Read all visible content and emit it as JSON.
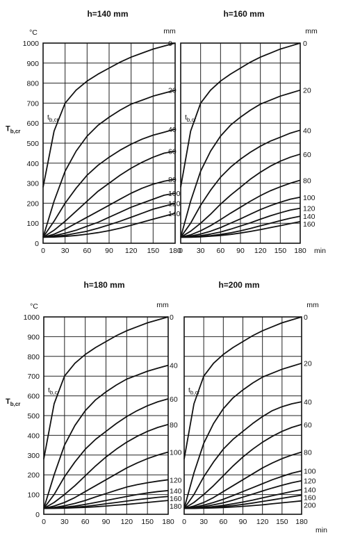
{
  "figure": {
    "y_axis_label": "T",
    "y_axis_label_sub": "b,cr",
    "y_unit": "°C",
    "depth_unit": "mm",
    "x_unit": "min",
    "inline_label": "t",
    "inline_label_sub": "b,cr",
    "x_ticks": [
      "0",
      "30",
      "60",
      "90",
      "120",
      "150",
      "180"
    ],
    "y_ticks": [
      "0",
      "100",
      "200",
      "300",
      "400",
      "500",
      "600",
      "700",
      "800",
      "900",
      "1000"
    ]
  },
  "chart_data": [
    {
      "type": "line",
      "title": "h=140 mm",
      "xlim": [
        0,
        180
      ],
      "ylim": [
        0,
        1000
      ],
      "grid": true,
      "x": [
        0,
        15,
        30,
        45,
        60,
        75,
        90,
        105,
        120,
        135,
        150,
        165,
        180
      ],
      "series": [
        {
          "name": "0",
          "values": [
            280,
            560,
            700,
            765,
            810,
            845,
            875,
            905,
            930,
            950,
            970,
            985,
            1000
          ]
        },
        {
          "name": "20",
          "values": [
            30,
            210,
            360,
            460,
            535,
            590,
            630,
            665,
            695,
            715,
            735,
            750,
            765
          ]
        },
        {
          "name": "40",
          "values": [
            30,
            110,
            200,
            275,
            340,
            390,
            430,
            465,
            495,
            520,
            540,
            555,
            570
          ]
        },
        {
          "name": "60",
          "values": [
            30,
            65,
            110,
            160,
            210,
            260,
            300,
            340,
            375,
            405,
            430,
            450,
            460
          ]
        },
        {
          "name": "80",
          "values": [
            30,
            45,
            70,
            100,
            130,
            160,
            190,
            220,
            250,
            275,
            295,
            310,
            320
          ]
        },
        {
          "name": "100",
          "values": [
            30,
            38,
            50,
            65,
            85,
            105,
            130,
            155,
            180,
            200,
            220,
            240,
            250
          ]
        },
        {
          "name": "120",
          "values": [
            30,
            34,
            40,
            50,
            60,
            75,
            92,
            110,
            130,
            150,
            170,
            185,
            200
          ]
        },
        {
          "name": "140",
          "values": [
            30,
            31,
            34,
            39,
            45,
            53,
            63,
            75,
            90,
            105,
            120,
            135,
            150
          ]
        }
      ]
    },
    {
      "type": "line",
      "title": "h=160 mm",
      "xlim": [
        0,
        180
      ],
      "ylim": [
        0,
        1000
      ],
      "grid": true,
      "x": [
        0,
        15,
        30,
        45,
        60,
        75,
        90,
        105,
        120,
        135,
        150,
        165,
        180
      ],
      "series": [
        {
          "name": "0",
          "values": [
            280,
            560,
            700,
            765,
            810,
            845,
            875,
            905,
            930,
            950,
            970,
            985,
            1000
          ]
        },
        {
          "name": "20",
          "values": [
            30,
            210,
            360,
            460,
            535,
            590,
            630,
            665,
            695,
            715,
            735,
            750,
            765
          ]
        },
        {
          "name": "40",
          "values": [
            30,
            100,
            190,
            265,
            330,
            380,
            420,
            455,
            485,
            510,
            530,
            550,
            565
          ]
        },
        {
          "name": "60",
          "values": [
            30,
            60,
            100,
            145,
            195,
            240,
            280,
            320,
            355,
            385,
            410,
            430,
            445
          ]
        },
        {
          "name": "80",
          "values": [
            30,
            42,
            62,
            88,
            118,
            150,
            180,
            210,
            238,
            262,
            282,
            300,
            315
          ]
        },
        {
          "name": "100",
          "values": [
            30,
            36,
            46,
            60,
            78,
            100,
            122,
            145,
            168,
            188,
            205,
            220,
            230
          ]
        },
        {
          "name": "120",
          "values": [
            30,
            33,
            38,
            46,
            56,
            70,
            86,
            102,
            120,
            137,
            152,
            166,
            175
          ]
        },
        {
          "name": "140",
          "values": [
            30,
            31,
            34,
            38,
            44,
            52,
            62,
            74,
            87,
            100,
            113,
            125,
            135
          ]
        },
        {
          "name": "160",
          "values": [
            30,
            30,
            32,
            35,
            39,
            44,
            51,
            59,
            68,
            78,
            88,
            98,
            108
          ]
        }
      ]
    },
    {
      "type": "line",
      "title": "h=180 mm",
      "xlim": [
        0,
        180
      ],
      "ylim": [
        0,
        1000
      ],
      "grid": true,
      "x": [
        0,
        15,
        30,
        45,
        60,
        75,
        90,
        105,
        120,
        135,
        150,
        165,
        180
      ],
      "series": [
        {
          "name": "0",
          "values": [
            280,
            560,
            700,
            765,
            810,
            845,
            875,
            905,
            930,
            950,
            970,
            985,
            1000
          ]
        },
        {
          "name": "40",
          "values": [
            30,
            200,
            350,
            450,
            525,
            580,
            620,
            655,
            685,
            705,
            725,
            740,
            755
          ]
        },
        {
          "name": "60",
          "values": [
            30,
            100,
            190,
            265,
            330,
            380,
            420,
            460,
            495,
            525,
            550,
            570,
            585
          ]
        },
        {
          "name": "80",
          "values": [
            30,
            60,
            100,
            145,
            195,
            245,
            290,
            330,
            365,
            395,
            420,
            440,
            455
          ]
        },
        {
          "name": "100",
          "values": [
            30,
            42,
            60,
            85,
            115,
            145,
            175,
            205,
            235,
            260,
            282,
            300,
            315
          ]
        },
        {
          "name": "120",
          "values": [
            30,
            35,
            43,
            55,
            70,
            88,
            105,
            122,
            138,
            150,
            160,
            168,
            175
          ]
        },
        {
          "name": "140",
          "values": [
            30,
            32,
            36,
            42,
            50,
            60,
            70,
            80,
            90,
            100,
            108,
            115,
            120
          ]
        },
        {
          "name": "160",
          "values": [
            30,
            31,
            33,
            36,
            40,
            46,
            53,
            60,
            67,
            74,
            80,
            86,
            90
          ]
        },
        {
          "name": "180",
          "values": [
            30,
            30,
            31,
            33,
            35,
            38,
            42,
            46,
            50,
            55,
            60,
            65,
            70
          ]
        }
      ]
    },
    {
      "type": "line",
      "title": "h=200 mm",
      "xlim": [
        0,
        180
      ],
      "ylim": [
        0,
        1000
      ],
      "grid": true,
      "x": [
        0,
        15,
        30,
        45,
        60,
        75,
        90,
        105,
        120,
        135,
        150,
        165,
        180
      ],
      "series": [
        {
          "name": "0",
          "values": [
            280,
            560,
            700,
            765,
            810,
            845,
            875,
            905,
            930,
            950,
            970,
            985,
            1000
          ]
        },
        {
          "name": "20",
          "values": [
            30,
            210,
            360,
            460,
            535,
            590,
            630,
            665,
            695,
            715,
            735,
            750,
            765
          ]
        },
        {
          "name": "40",
          "values": [
            30,
            100,
            190,
            265,
            330,
            380,
            420,
            460,
            495,
            525,
            545,
            560,
            570
          ]
        },
        {
          "name": "60",
          "values": [
            30,
            60,
            100,
            145,
            195,
            245,
            290,
            330,
            365,
            395,
            420,
            440,
            455
          ]
        },
        {
          "name": "80",
          "values": [
            30,
            42,
            60,
            85,
            115,
            145,
            175,
            205,
            235,
            260,
            282,
            300,
            315
          ]
        },
        {
          "name": "100",
          "values": [
            30,
            36,
            46,
            60,
            76,
            95,
            115,
            135,
            155,
            175,
            192,
            208,
            220
          ]
        },
        {
          "name": "120",
          "values": [
            30,
            33,
            39,
            48,
            58,
            72,
            87,
            102,
            118,
            133,
            147,
            160,
            170
          ]
        },
        {
          "name": "140",
          "values": [
            30,
            31,
            34,
            39,
            45,
            53,
            62,
            72,
            83,
            94,
            105,
            115,
            125
          ]
        },
        {
          "name": "160",
          "values": [
            30,
            30,
            32,
            35,
            39,
            44,
            50,
            57,
            65,
            73,
            81,
            89,
            97
          ]
        },
        {
          "name": "200",
          "values": [
            30,
            30,
            31,
            32,
            34,
            37,
            40,
            44,
            48,
            53,
            58,
            63,
            68
          ]
        }
      ]
    }
  ]
}
